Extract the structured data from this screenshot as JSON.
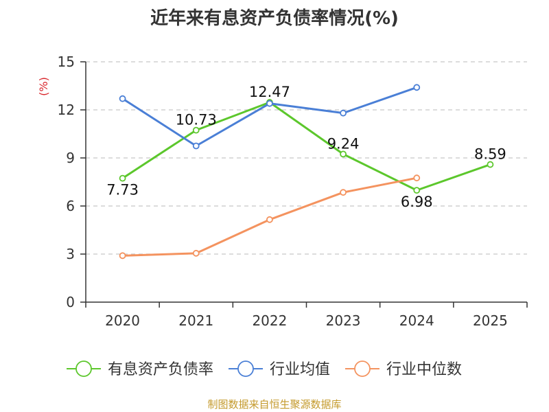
{
  "chart_data": {
    "type": "line",
    "title": "近年来有息资产负债率情况(%)",
    "ylabel": "(%)",
    "xlabel": "",
    "ylim": [
      0,
      15
    ],
    "yticks": [
      0,
      3,
      6,
      9,
      12,
      15
    ],
    "categories": [
      "2020",
      "2021",
      "2022",
      "2023",
      "2024",
      "2025"
    ],
    "grid": true,
    "legend_position": "bottom",
    "series": [
      {
        "name": "有息资产负债率",
        "color": "#5cc72c",
        "values": [
          7.73,
          10.73,
          12.47,
          9.24,
          6.98,
          8.59
        ],
        "labels": [
          "7.73",
          "10.73",
          "12.47",
          "9.24",
          "6.98",
          "8.59"
        ]
      },
      {
        "name": "行业均值",
        "color": "#4a7fd6",
        "values": [
          12.7,
          9.75,
          12.4,
          11.8,
          13.4,
          null
        ]
      },
      {
        "name": "行业中位数",
        "color": "#f4935f",
        "values": [
          2.9,
          3.05,
          5.15,
          6.85,
          7.75,
          null
        ]
      }
    ]
  },
  "footer": {
    "source": "制图数据来自恒生聚源数据库"
  },
  "colors": {
    "ylabel": "#d9262c",
    "grid": "#c8c8c8",
    "axis": "#333333",
    "text": "#333333"
  }
}
